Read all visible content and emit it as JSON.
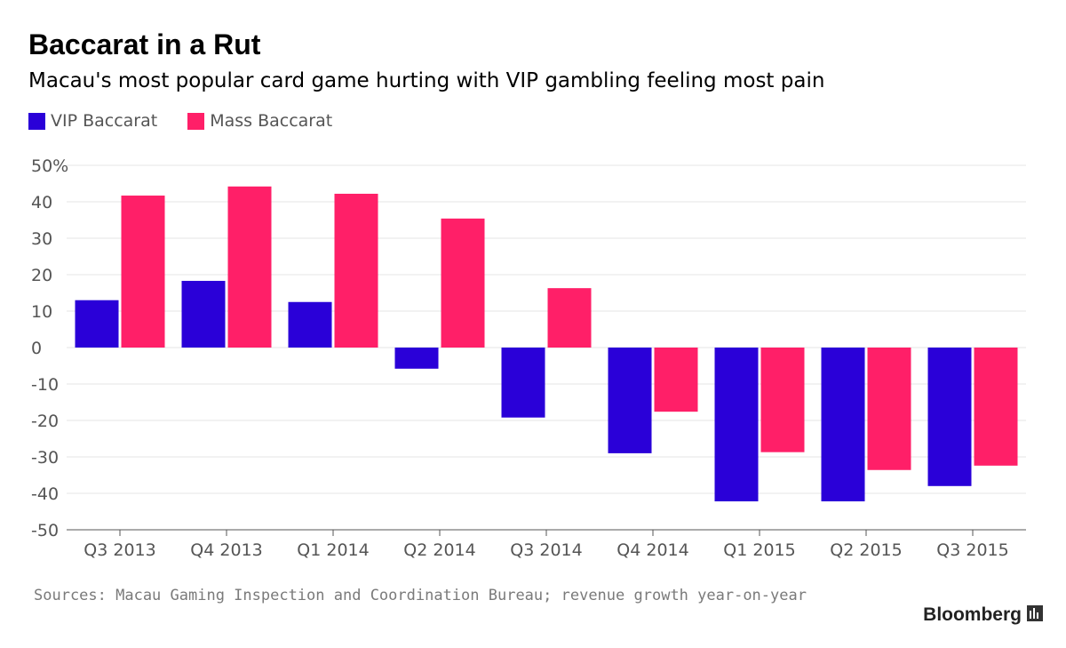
{
  "title": "Baccarat in a Rut",
  "subtitle": "Macau's most popular card game hurting with VIP gambling feeling most pain",
  "legend": [
    {
      "label": "VIP Baccarat",
      "color": "#2a00d8"
    },
    {
      "label": "Mass Baccarat",
      "color": "#ff1f68"
    }
  ],
  "source": "Sources: Macau Gaming Inspection and Coordination Bureau; revenue growth year-on-year",
  "brand": "Bloomberg",
  "brand_icon": "bloomberg-chart-icon",
  "chart_data": {
    "type": "bar",
    "categories": [
      "Q3 2013",
      "Q4 2013",
      "Q1 2014",
      "Q2 2014",
      "Q3 2014",
      "Q4 2014",
      "Q1 2015",
      "Q2 2015",
      "Q3 2015"
    ],
    "series": [
      {
        "name": "VIP Baccarat",
        "color": "#2a00d8",
        "values": [
          13,
          18.3,
          12.5,
          -5.8,
          -19.2,
          -29,
          -42.2,
          -42.2,
          -38
        ]
      },
      {
        "name": "Mass Baccarat",
        "color": "#ff1f68",
        "values": [
          41.7,
          44.2,
          42.2,
          35.4,
          16.3,
          -17.6,
          -28.7,
          -33.6,
          -32.4
        ]
      }
    ],
    "ylim": [
      -50,
      50
    ],
    "yticks": [
      "50%",
      "40",
      "30",
      "20",
      "10",
      "0",
      "-10",
      "-20",
      "-30",
      "-40",
      "-50"
    ],
    "ytick_values": [
      50,
      40,
      30,
      20,
      10,
      0,
      -10,
      -20,
      -30,
      -40,
      -50
    ],
    "grid": true,
    "legend_position": "top-left",
    "xlabel": "",
    "ylabel": ""
  }
}
